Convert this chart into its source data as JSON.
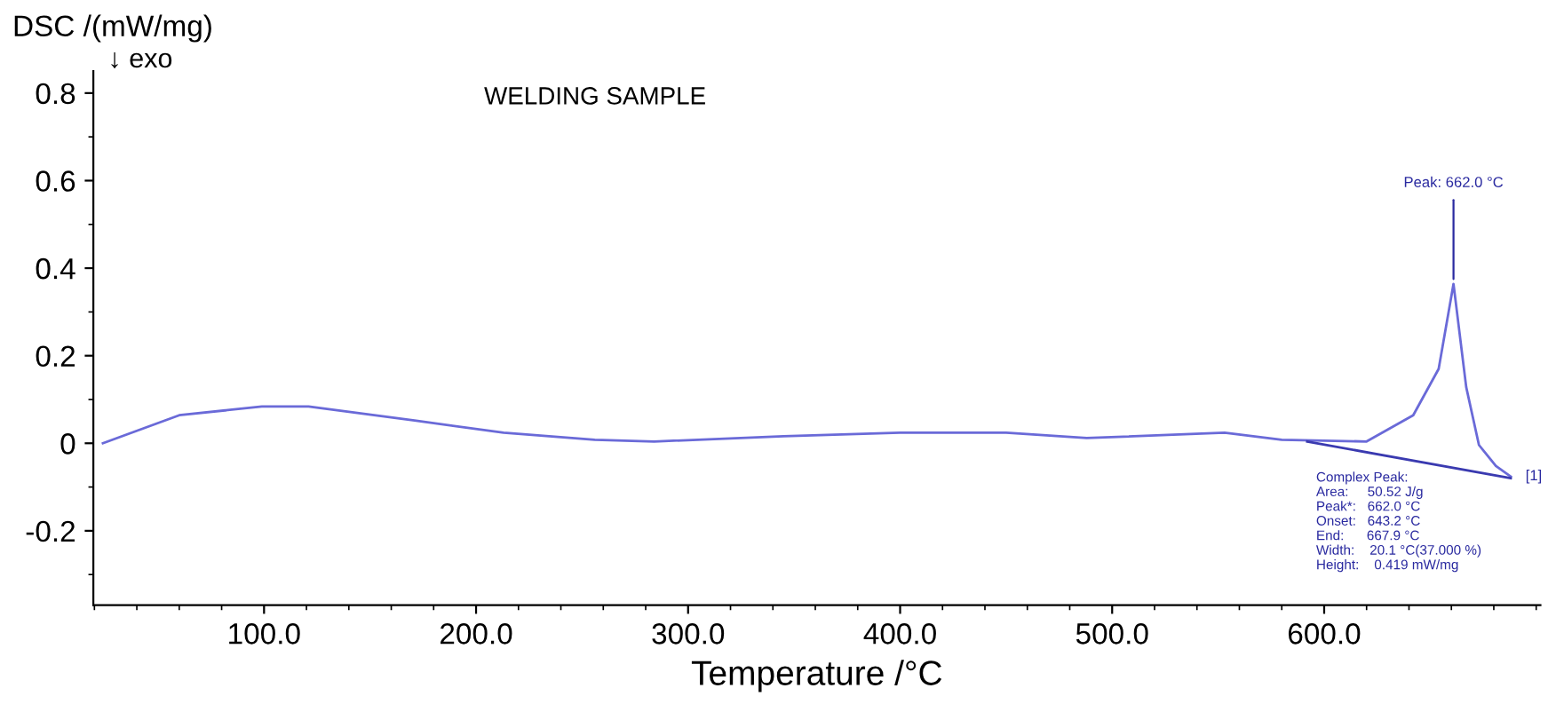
{
  "chart_data": {
    "type": "line",
    "title": "WELDING SAMPLE",
    "xlabel": "Temperature /°C",
    "ylabel": "DSC /(mW/mg)",
    "xlim": [
      19.5,
      702
    ],
    "ylim": [
      -0.37,
      0.85
    ],
    "xticks": [
      {
        "value": 100,
        "label": "100.0"
      },
      {
        "value": 200,
        "label": "200.0"
      },
      {
        "value": 300,
        "label": "300.0"
      },
      {
        "value": 400,
        "label": "400.0"
      },
      {
        "value": 500,
        "label": "500.0"
      },
      {
        "value": 600,
        "label": "600.0"
      }
    ],
    "yticks": [
      {
        "value": -0.2,
        "label": "-0.2"
      },
      0,
      0.2,
      0.4,
      0.6,
      0.8
    ],
    "grid": false,
    "legend": false,
    "series": [
      {
        "color": "#6a6ad8",
        "x": [
          24,
          60,
          99,
          121,
          171,
          213,
          256,
          284,
          345,
          400,
          450,
          488,
          553,
          580,
          620,
          642,
          654,
          661,
          667,
          673,
          681,
          688
        ],
        "values": [
          0,
          0.064,
          0.084,
          0.084,
          0.052,
          0.024,
          0.008,
          0.004,
          0.016,
          0.024,
          0.024,
          0.012,
          0.024,
          0.008,
          0.004,
          0.064,
          0.17,
          0.364,
          0.128,
          -0.004,
          -0.052,
          -0.076
        ]
      },
      {
        "color": "#3a3ab0",
        "x": [
          592,
          688
        ],
        "values": [
          0.004,
          -0.08
        ]
      }
    ],
    "annotations": [
      "↓ exo",
      {
        "text": "Peak: 662.0 °C",
        "x": 661,
        "y": 0.364
      },
      {
        "text": "[1]",
        "x": 688,
        "y": -0.076
      },
      "Complex Peak:\nArea:     50.52 J/g\nPeak*:   662.0 °C\nOnset:   643.2 °C\nEnd:      667.9 °C\nWidth:    20.1 °C(37.000 %)\nHeight:    0.419 mW/mg"
    ]
  }
}
